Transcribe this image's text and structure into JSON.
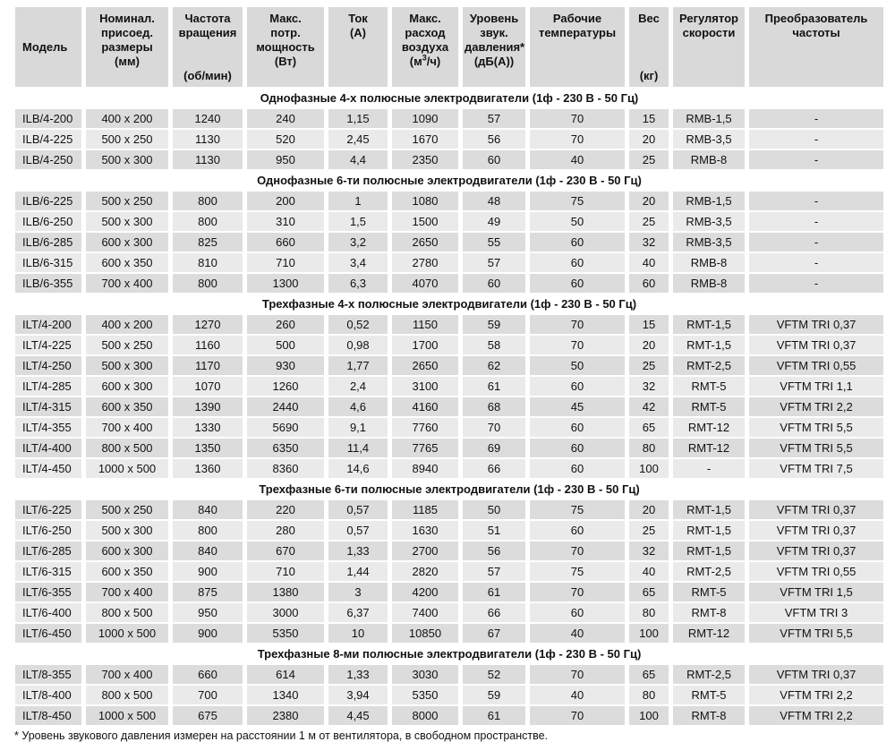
{
  "colors": {
    "page-bg": "#ffffff",
    "header-bg": "#d9d9d9",
    "row-dark": "#dcdcdc",
    "row-light": "#eaeaea",
    "text": "#111111"
  },
  "table": {
    "columns": [
      {
        "title": "Модель",
        "unit": "",
        "align": "center",
        "key": "model"
      },
      {
        "title": "Номинал.\nприсоед.\nразмеры",
        "unit": "(мм)",
        "align": "top",
        "key": "dimensions"
      },
      {
        "title": "Частота\nвращения",
        "unit": "(об/мин)",
        "align": "split",
        "key": "rpm"
      },
      {
        "title": "Макс.\nпотр.\nмощность",
        "unit": "(Вт)",
        "align": "top",
        "key": "max-power"
      },
      {
        "title": "Ток",
        "unit": "(А)",
        "align": "top",
        "key": "current"
      },
      {
        "title": "Макс.\nрасход\nвоздуха",
        "unit": "(м3/ч)",
        "sup3": true,
        "align": "top",
        "key": "max-airflow"
      },
      {
        "title": "Уровень\nзвук.\nдавления*",
        "unit": "(дБ(А))",
        "align": "top",
        "key": "sound-level"
      },
      {
        "title": "Рабочие\nтемпературы",
        "unit": "",
        "align": "top",
        "key": "operating-temp"
      },
      {
        "title": "Вес",
        "unit": "(кг)",
        "align": "split",
        "key": "weight"
      },
      {
        "title": "Регулятор\nскорости",
        "unit": "",
        "align": "top",
        "key": "speed-regulator"
      },
      {
        "title": "Преобразователь\nчастоты",
        "unit": "",
        "align": "top",
        "key": "frequency-converter"
      }
    ],
    "sections": [
      {
        "title": "Однофазные 4-х полюсные электродвигатели (1ф - 230 В - 50 Гц)",
        "rows": [
          [
            "ILB/4-200",
            "400 x 200",
            "1240",
            "240",
            "1,15",
            "1090",
            "57",
            "70",
            "15",
            "RMB-1,5",
            "-"
          ],
          [
            "ILB/4-225",
            "500 x 250",
            "1130",
            "520",
            "2,45",
            "1670",
            "56",
            "70",
            "20",
            "RMB-3,5",
            "-"
          ],
          [
            "ILB/4-250",
            "500 x 300",
            "1130",
            "950",
            "4,4",
            "2350",
            "60",
            "40",
            "25",
            "RMB-8",
            "-"
          ]
        ]
      },
      {
        "title": "Однофазные 6-ти полюсные электродвигатели (1ф - 230 В - 50 Гц)",
        "rows": [
          [
            "ILB/6-225",
            "500 x 250",
            "800",
            "200",
            "1",
            "1080",
            "48",
            "75",
            "20",
            "RMB-1,5",
            "-"
          ],
          [
            "ILB/6-250",
            "500 x 300",
            "800",
            "310",
            "1,5",
            "1500",
            "49",
            "50",
            "25",
            "RMB-3,5",
            "-"
          ],
          [
            "ILB/6-285",
            "600 x 300",
            "825",
            "660",
            "3,2",
            "2650",
            "55",
            "60",
            "32",
            "RMB-3,5",
            "-"
          ],
          [
            "ILB/6-315",
            "600 x 350",
            "810",
            "710",
            "3,4",
            "2780",
            "57",
            "60",
            "40",
            "RMB-8",
            "-"
          ],
          [
            "ILB/6-355",
            "700 x 400",
            "800",
            "1300",
            "6,3",
            "4070",
            "60",
            "60",
            "60",
            "RMB-8",
            "-"
          ]
        ]
      },
      {
        "title": "Трехфазные 4-х полюсные электродвигатели (1ф - 230 В - 50 Гц)",
        "rows": [
          [
            "ILT/4-200",
            "400 x 200",
            "1270",
            "260",
            "0,52",
            "1150",
            "59",
            "70",
            "15",
            "RMT-1,5",
            "VFTM TRI 0,37"
          ],
          [
            "ILT/4-225",
            "500 x 250",
            "1160",
            "500",
            "0,98",
            "1700",
            "58",
            "70",
            "20",
            "RMT-1,5",
            "VFTM TRI 0,37"
          ],
          [
            "ILT/4-250",
            "500 x 300",
            "1170",
            "930",
            "1,77",
            "2650",
            "62",
            "50",
            "25",
            "RMT-2,5",
            "VFTM TRI 0,55"
          ],
          [
            "ILT/4-285",
            "600 x 300",
            "1070",
            "1260",
            "2,4",
            "3100",
            "61",
            "60",
            "32",
            "RMT-5",
            "VFTM TRI 1,1"
          ],
          [
            "ILT/4-315",
            "600 x 350",
            "1390",
            "2440",
            "4,6",
            "4160",
            "68",
            "45",
            "42",
            "RMT-5",
            "VFTM TRI 2,2"
          ],
          [
            "ILT/4-355",
            "700 x 400",
            "1330",
            "5690",
            "9,1",
            "7760",
            "70",
            "60",
            "65",
            "RMT-12",
            "VFTM TRI 5,5"
          ],
          [
            "ILT/4-400",
            "800 x 500",
            "1350",
            "6350",
            "11,4",
            "7765",
            "69",
            "60",
            "80",
            "RMT-12",
            "VFTM TRI 5,5"
          ],
          [
            "ILT/4-450",
            "1000 x 500",
            "1360",
            "8360",
            "14,6",
            "8940",
            "66",
            "60",
            "100",
            "-",
            "VFTM TRI 7,5"
          ]
        ]
      },
      {
        "title": "Трехфазные 6-ти полюсные электродвигатели (1ф - 230 В - 50 Гц)",
        "rows": [
          [
            "ILT/6-225",
            "500 x 250",
            "840",
            "220",
            "0,57",
            "1185",
            "50",
            "75",
            "20",
            "RMT-1,5",
            "VFTM TRI 0,37"
          ],
          [
            "ILT/6-250",
            "500 x 300",
            "800",
            "280",
            "0,57",
            "1630",
            "51",
            "60",
            "25",
            "RMT-1,5",
            "VFTM TRI 0,37"
          ],
          [
            "ILT/6-285",
            "600 x 300",
            "840",
            "670",
            "1,33",
            "2700",
            "56",
            "70",
            "32",
            "RMT-1,5",
            "VFTM TRI 0,37"
          ],
          [
            "ILT/6-315",
            "600 x 350",
            "900",
            "710",
            "1,44",
            "2820",
            "57",
            "75",
            "40",
            "RMT-2,5",
            "VFTM TRI 0,55"
          ],
          [
            "ILT/6-355",
            "700 x 400",
            "875",
            "1380",
            "3",
            "4200",
            "61",
            "70",
            "65",
            "RMT-5",
            "VFTM TRI 1,5"
          ],
          [
            "ILT/6-400",
            "800 x 500",
            "950",
            "3000",
            "6,37",
            "7400",
            "66",
            "60",
            "80",
            "RMT-8",
            "VFTM TRI 3"
          ],
          [
            "ILT/6-450",
            "1000 x 500",
            "900",
            "5350",
            "10",
            "10850",
            "67",
            "40",
            "100",
            "RMT-12",
            "VFTM TRI 5,5"
          ]
        ]
      },
      {
        "title": "Трехфазные 8-ми полюсные электродвигатели (1ф - 230 В - 50 Гц)",
        "rows": [
          [
            "ILT/8-355",
            "700 x 400",
            "660",
            "614",
            "1,33",
            "3030",
            "52",
            "70",
            "65",
            "RMT-2,5",
            "VFTM TRI 0,37"
          ],
          [
            "ILT/8-400",
            "800 x 500",
            "700",
            "1340",
            "3,94",
            "5350",
            "59",
            "40",
            "80",
            "RMT-5",
            "VFTM TRI 2,2"
          ],
          [
            "ILT/8-450",
            "1000 x 500",
            "675",
            "2380",
            "4,45",
            "8000",
            "61",
            "70",
            "100",
            "RMT-8",
            "VFTM TRI 2,2"
          ]
        ]
      }
    ],
    "footnote": "* Уровень звукового давления измерен на расстоянии 1 м от вентилятора, в свободном пространстве."
  }
}
